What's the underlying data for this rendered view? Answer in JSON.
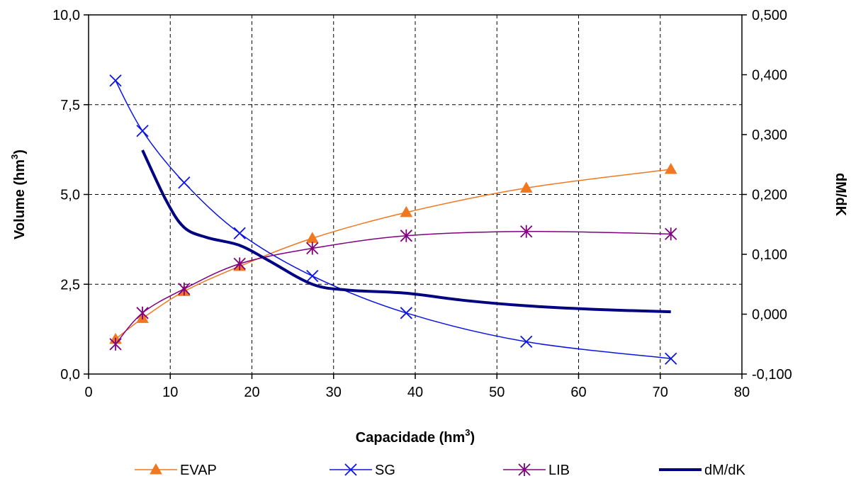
{
  "chart_data": {
    "type": "line",
    "x_axis": {
      "label": "Capacidade (hm",
      "label_sup": "3",
      "label_close": ")",
      "min": 0,
      "max": 80,
      "ticks": [
        0,
        10,
        20,
        30,
        40,
        50,
        60,
        70,
        80
      ],
      "tick_labels": [
        "0",
        "10",
        "20",
        "30",
        "40",
        "50",
        "60",
        "70",
        "80"
      ]
    },
    "y_axis_left": {
      "label": "Volume (hm",
      "label_sup": "3",
      "label_close": ")",
      "min": 0,
      "max": 10,
      "ticks": [
        0,
        2.5,
        5,
        7.5,
        10
      ],
      "tick_labels": [
        "0,0",
        "2,5",
        "5,0",
        "7,5",
        "10,0"
      ]
    },
    "y_axis_right": {
      "label": "dM/dK",
      "min": -0.1,
      "max": 0.5,
      "ticks": [
        -0.1,
        0,
        0.1,
        0.2,
        0.3,
        0.4,
        0.5
      ],
      "tick_labels": [
        "-0,100",
        "0,000",
        "0,100",
        "0,200",
        "0,300",
        "0,400",
        "0,500"
      ]
    },
    "grid": true,
    "legend_position": "bottom",
    "series": [
      {
        "name": "EVAP",
        "axis": "left",
        "color": "#F07820",
        "marker": "triangle",
        "line_width": 1.5,
        "x": [
          3.3,
          6.6,
          11.7,
          18.5,
          27.4,
          38.9,
          53.6,
          71.3
        ],
        "y": [
          0.97,
          1.55,
          2.3,
          3.0,
          3.78,
          4.5,
          5.18,
          5.7
        ]
      },
      {
        "name": "SG",
        "axis": "left",
        "color": "#0A14E6",
        "marker": "x",
        "line_width": 1.5,
        "x": [
          3.3,
          6.6,
          11.7,
          18.5,
          27.4,
          38.9,
          53.6,
          71.3
        ],
        "y": [
          8.17,
          6.77,
          5.33,
          3.92,
          2.73,
          1.7,
          0.9,
          0.43
        ]
      },
      {
        "name": "LIB",
        "axis": "left",
        "color": "#800080",
        "marker": "asterisk",
        "line_width": 1.5,
        "x": [
          3.3,
          6.6,
          11.7,
          18.5,
          27.4,
          38.9,
          53.6,
          71.3
        ],
        "y": [
          0.83,
          1.7,
          2.37,
          3.07,
          3.5,
          3.85,
          3.97,
          3.9
        ]
      },
      {
        "name": "dM/dK",
        "axis": "right",
        "color": "#000080",
        "marker": "none",
        "line_width": 4,
        "x": [
          6.6,
          9.5,
          11.7,
          14.5,
          18.5,
          22,
          27.4,
          32,
          38.9,
          46,
          53.6,
          62,
          71.3
        ],
        "y": [
          0.274,
          0.19,
          0.145,
          0.128,
          0.115,
          0.09,
          0.05,
          0.04,
          0.035,
          0.023,
          0.014,
          0.008,
          0.004
        ]
      }
    ]
  }
}
